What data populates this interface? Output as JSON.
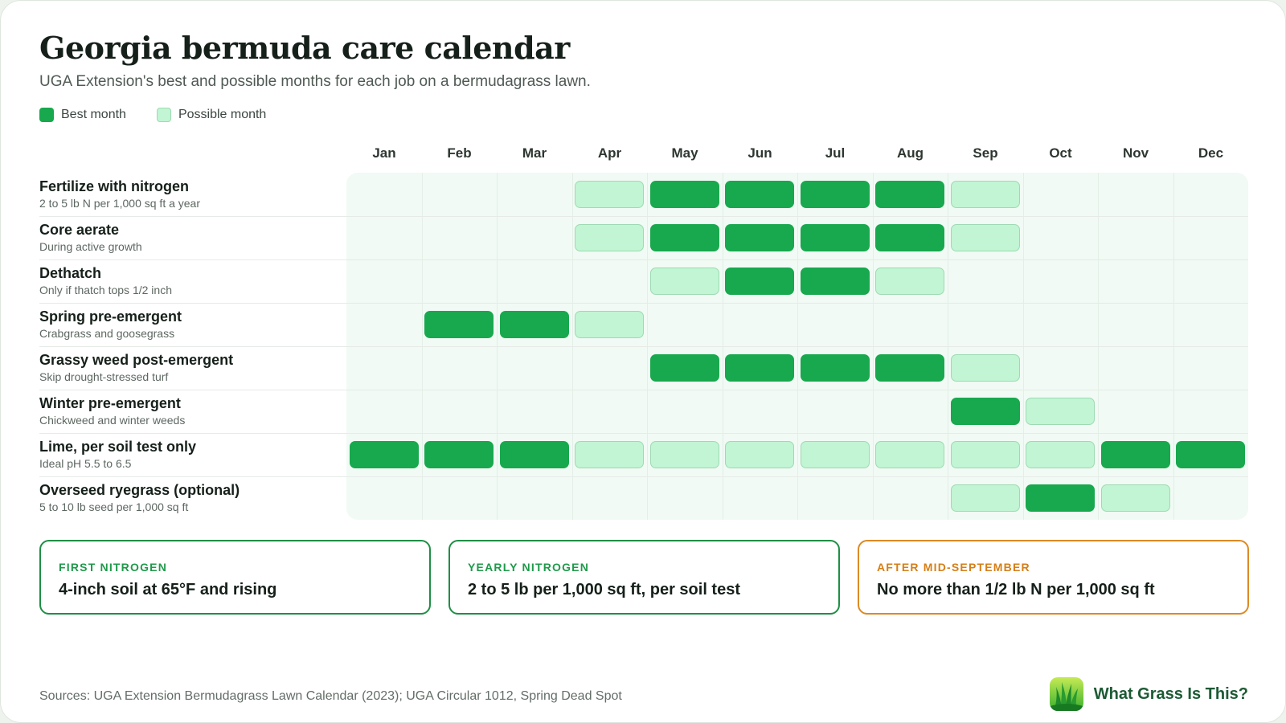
{
  "title": "Georgia bermuda care calendar",
  "subtitle": "UGA Extension's best and possible months for each job on a bermudagrass lawn.",
  "legend": {
    "best": "Best month",
    "possible": "Possible month"
  },
  "colors": {
    "best": "#18a84e",
    "possible": "#c1f5d3",
    "accent": "#1e8f45",
    "warning": "#dc8a24"
  },
  "chart_data": {
    "type": "heatmap",
    "x": [
      "Jan",
      "Feb",
      "Mar",
      "Apr",
      "May",
      "Jun",
      "Jul",
      "Aug",
      "Sep",
      "Oct",
      "Nov",
      "Dec"
    ],
    "value_levels": [
      "none",
      "possible",
      "best"
    ],
    "rows": [
      {
        "name": "Fertilize with nitrogen",
        "note": "2 to 5 lb N per 1,000 sq ft a year",
        "values": [
          "none",
          "none",
          "none",
          "possible",
          "best",
          "best",
          "best",
          "best",
          "possible",
          "none",
          "none",
          "none"
        ]
      },
      {
        "name": "Core aerate",
        "note": "During active growth",
        "values": [
          "none",
          "none",
          "none",
          "possible",
          "best",
          "best",
          "best",
          "best",
          "possible",
          "none",
          "none",
          "none"
        ]
      },
      {
        "name": "Dethatch",
        "note": "Only if thatch tops 1/2 inch",
        "values": [
          "none",
          "none",
          "none",
          "none",
          "possible",
          "best",
          "best",
          "possible",
          "none",
          "none",
          "none",
          "none"
        ]
      },
      {
        "name": "Spring pre-emergent",
        "note": "Crabgrass and goosegrass",
        "values": [
          "none",
          "best",
          "best",
          "possible",
          "none",
          "none",
          "none",
          "none",
          "none",
          "none",
          "none",
          "none"
        ]
      },
      {
        "name": "Grassy weed post-emergent",
        "note": "Skip drought-stressed turf",
        "values": [
          "none",
          "none",
          "none",
          "none",
          "best",
          "best",
          "best",
          "best",
          "possible",
          "none",
          "none",
          "none"
        ]
      },
      {
        "name": "Winter pre-emergent",
        "note": "Chickweed and winter weeds",
        "values": [
          "none",
          "none",
          "none",
          "none",
          "none",
          "none",
          "none",
          "none",
          "best",
          "possible",
          "none",
          "none"
        ]
      },
      {
        "name": "Lime, per soil test only",
        "note": "Ideal pH 5.5 to 6.5",
        "values": [
          "best",
          "best",
          "best",
          "possible",
          "possible",
          "possible",
          "possible",
          "possible",
          "possible",
          "possible",
          "best",
          "best"
        ]
      },
      {
        "name": "Overseed ryegrass (optional)",
        "note": "5 to 10 lb seed per 1,000 sq ft",
        "values": [
          "none",
          "none",
          "none",
          "none",
          "none",
          "none",
          "none",
          "none",
          "possible",
          "best",
          "possible",
          "none"
        ]
      }
    ]
  },
  "info_cards": [
    {
      "label": "FIRST NITROGEN",
      "value": "4-inch soil at 65°F and rising",
      "style": "normal"
    },
    {
      "label": "YEARLY NITROGEN",
      "value": "2 to 5 lb per 1,000 sq ft, per soil test",
      "style": "normal"
    },
    {
      "label": "AFTER MID-SEPTEMBER",
      "value": "No more than 1/2 lb N per 1,000 sq ft",
      "style": "warn"
    }
  ],
  "sources": "Sources: UGA Extension Bermudagrass Lawn Calendar (2023); UGA Circular 1012, Spring Dead Spot",
  "brand": {
    "name": "What Grass Is This?",
    "icon": "grass-logo-icon"
  }
}
